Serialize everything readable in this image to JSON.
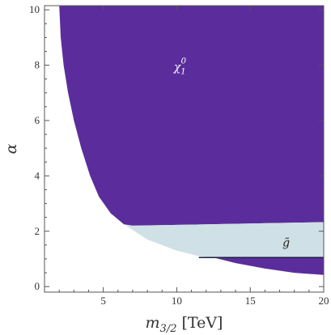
{
  "chart_data": {
    "type": "area",
    "xlabel_main": "m",
    "xlabel_sub": "3/2",
    "xlabel_unit": "[TeV]",
    "ylabel": "α",
    "xlim": [
      1,
      20
    ],
    "ylim": [
      -0.2,
      10.15
    ],
    "x_ticks": [
      5,
      10,
      15,
      20
    ],
    "y_ticks": [
      0,
      2,
      4,
      6,
      8,
      10
    ],
    "grid": false,
    "colors": {
      "neutralino_region": "#5b2d9c",
      "gluino_region": "#cfe0e6",
      "boundary_line": "#1e1e3c",
      "frame": "#555555"
    },
    "regions": [
      {
        "name": "neutralino",
        "label_main": "χ",
        "label_sub": "1",
        "label_sup": "0",
        "label_at": [
          9.8,
          7.8
        ],
        "boundary": [
          [
            2.0,
            10.15
          ],
          [
            2.1,
            9.0
          ],
          [
            2.3,
            8.0
          ],
          [
            2.6,
            7.0
          ],
          [
            3.0,
            6.0
          ],
          [
            3.5,
            5.0
          ],
          [
            4.1,
            4.0
          ],
          [
            4.7,
            3.25
          ],
          [
            5.5,
            2.65
          ],
          [
            6.4,
            2.25
          ],
          [
            7.0,
            2.2
          ],
          [
            12.0,
            2.25
          ],
          [
            17.0,
            2.3
          ],
          [
            20.0,
            2.33
          ],
          [
            20.0,
            10.15
          ]
        ]
      },
      {
        "name": "gluino",
        "label_main": "g̃",
        "label_at": [
          17.2,
          1.45
        ],
        "boundary": [
          [
            6.5,
            2.22
          ],
          [
            8.0,
            1.7
          ],
          [
            10.0,
            1.3
          ],
          [
            11.5,
            1.1
          ],
          [
            12.5,
            1.05
          ],
          [
            20.0,
            1.05
          ],
          [
            20.0,
            2.33
          ],
          [
            17.0,
            2.3
          ],
          [
            12.0,
            2.25
          ],
          [
            7.0,
            2.2
          ]
        ]
      },
      {
        "name": "neutralino_lower",
        "boundary": [
          [
            12.5,
            1.05
          ],
          [
            14.0,
            0.85
          ],
          [
            16.0,
            0.65
          ],
          [
            18.0,
            0.5
          ],
          [
            20.0,
            0.42
          ],
          [
            20.0,
            1.05
          ]
        ]
      }
    ],
    "boundary_line": [
      [
        11.5,
        1.05
      ],
      [
        20.0,
        1.05
      ]
    ]
  }
}
